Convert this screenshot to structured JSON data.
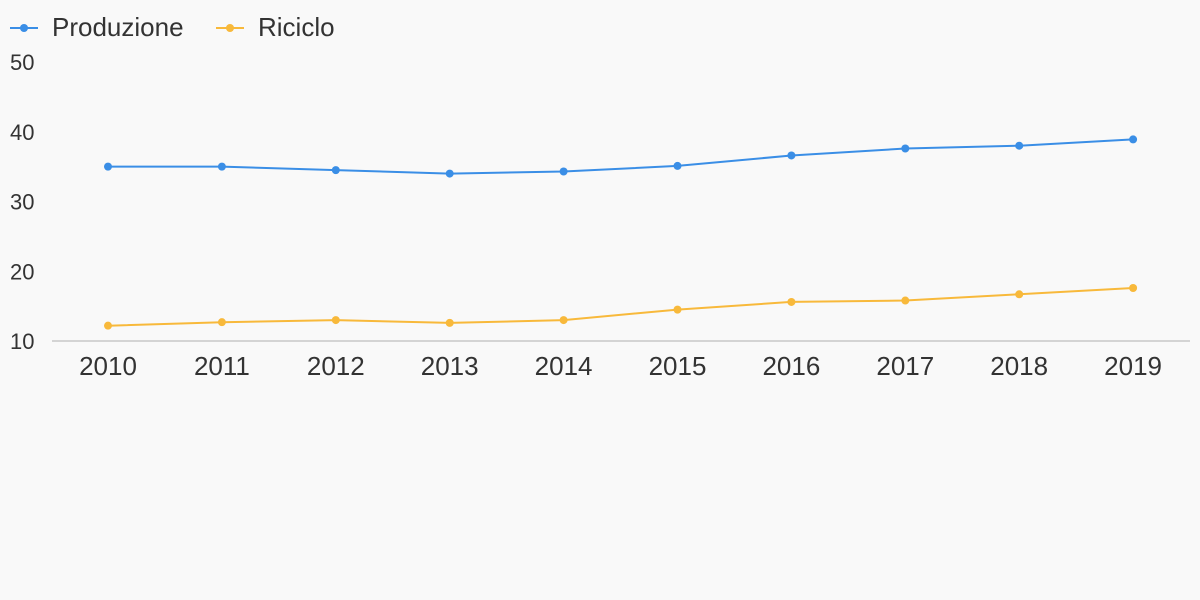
{
  "chart_data": {
    "type": "line",
    "title": "",
    "xlabel": "",
    "ylabel": "",
    "categories": [
      "2010",
      "2011",
      "2012",
      "2013",
      "2014",
      "2015",
      "2016",
      "2017",
      "2018",
      "2019"
    ],
    "ylim": [
      10,
      50
    ],
    "yticks": [
      10,
      20,
      30,
      40,
      50
    ],
    "grid": false,
    "legend": "top-left",
    "series": [
      {
        "name": "Produzione",
        "color": "#3a8ee6",
        "values": [
          35.0,
          35.0,
          34.5,
          34.0,
          34.3,
          35.1,
          36.6,
          37.6,
          38.0,
          38.9
        ]
      },
      {
        "name": "Riciclo",
        "color": "#f8b93b",
        "values": [
          12.2,
          12.7,
          13.0,
          12.6,
          13.0,
          14.5,
          15.6,
          15.8,
          16.7,
          17.6
        ]
      }
    ]
  }
}
